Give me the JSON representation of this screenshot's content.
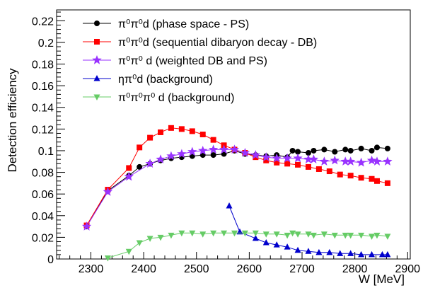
{
  "chart_data": {
    "type": "line",
    "xlabel": "W  [MeV]",
    "ylabel": "Detection efficiency",
    "xlim": [
      2235,
      2905
    ],
    "ylim": [
      0,
      0.23
    ],
    "x_ticks": [
      "2300",
      "2400",
      "2500",
      "2600",
      "2700",
      "2800",
      "2900"
    ],
    "y_ticks": [
      "0",
      "0.02",
      "0.04",
      "0.06",
      "0.08",
      "0.1",
      "0.12",
      "0.14",
      "0.16",
      "0.18",
      "0.2",
      "0.22"
    ],
    "grid": false,
    "legend_position": "top-left",
    "series": [
      {
        "name": "π⁰π⁰d (phase space - PS)",
        "color": "#000000",
        "marker": "circle",
        "x": [
          2292,
          2332,
          2372,
          2392,
          2412,
          2432,
          2452,
          2472,
          2492,
          2512,
          2532,
          2552,
          2572,
          2592,
          2612,
          2632,
          2652,
          2672,
          2682,
          2692,
          2712,
          2722,
          2742,
          2762,
          2782,
          2792,
          2812,
          2832,
          2842,
          2862
        ],
        "y": [
          0.03,
          0.063,
          0.077,
          0.085,
          0.088,
          0.091,
          0.093,
          0.094,
          0.095,
          0.096,
          0.096,
          0.097,
          0.1,
          0.097,
          0.096,
          0.095,
          0.096,
          0.094,
          0.1,
          0.099,
          0.098,
          0.1,
          0.101,
          0.099,
          0.101,
          0.1,
          0.102,
          0.1,
          0.103,
          0.102
        ]
      },
      {
        "name": "π⁰π⁰d (sequential dibaryon decay - DB)",
        "color": "#ff0000",
        "marker": "square",
        "x": [
          2292,
          2332,
          2372,
          2392,
          2412,
          2432,
          2452,
          2472,
          2492,
          2512,
          2532,
          2552,
          2572,
          2592,
          2612,
          2632,
          2652,
          2672,
          2692,
          2712,
          2732,
          2752,
          2772,
          2792,
          2812,
          2832,
          2842,
          2862
        ],
        "y": [
          0.031,
          0.064,
          0.084,
          0.103,
          0.112,
          0.117,
          0.121,
          0.12,
          0.118,
          0.115,
          0.11,
          0.105,
          0.101,
          0.098,
          0.094,
          0.091,
          0.089,
          0.088,
          0.087,
          0.085,
          0.083,
          0.081,
          0.078,
          0.077,
          0.075,
          0.074,
          0.072,
          0.07
        ]
      },
      {
        "name": "π⁰π⁰ d (weighted DB and PS)",
        "color": "#9933ff",
        "marker": "star",
        "x": [
          2292,
          2332,
          2372,
          2412,
          2432,
          2452,
          2472,
          2492,
          2512,
          2532,
          2552,
          2572,
          2592,
          2612,
          2632,
          2652,
          2672,
          2692,
          2712,
          2722,
          2742,
          2762,
          2782,
          2792,
          2812,
          2832,
          2842,
          2862
        ],
        "y": [
          0.03,
          0.062,
          0.076,
          0.088,
          0.092,
          0.095,
          0.097,
          0.099,
          0.1,
          0.101,
          0.101,
          0.101,
          0.098,
          0.096,
          0.094,
          0.093,
          0.093,
          0.093,
          0.092,
          0.092,
          0.09,
          0.091,
          0.09,
          0.09,
          0.089,
          0.091,
          0.09,
          0.09
        ]
      },
      {
        "name": "ηπ⁰d (background)",
        "color": "#0000cc",
        "marker": "triangle-up",
        "x": [
          2562,
          2582,
          2612,
          2632,
          2652,
          2672,
          2692,
          2712,
          2732,
          2752,
          2772,
          2792,
          2812,
          2832,
          2852,
          2862
        ],
        "y": [
          0.049,
          0.025,
          0.019,
          0.015,
          0.013,
          0.011,
          0.008,
          0.007,
          0.006,
          0.006,
          0.005,
          0.005,
          0.004,
          0.004,
          0.004,
          0.004
        ]
      },
      {
        "name": "π⁰π⁰π⁰ d (background)",
        "color": "#66cc66",
        "marker": "triangle-down",
        "x": [
          2332,
          2372,
          2392,
          2412,
          2432,
          2452,
          2472,
          2492,
          2512,
          2532,
          2552,
          2572,
          2592,
          2612,
          2632,
          2652,
          2672,
          2682,
          2692,
          2712,
          2722,
          2742,
          2762,
          2782,
          2792,
          2812,
          2832,
          2842,
          2862
        ],
        "y": [
          0.001,
          0.007,
          0.015,
          0.019,
          0.02,
          0.022,
          0.024,
          0.024,
          0.023,
          0.024,
          0.024,
          0.024,
          0.024,
          0.024,
          0.023,
          0.023,
          0.022,
          0.024,
          0.023,
          0.023,
          0.022,
          0.023,
          0.022,
          0.022,
          0.022,
          0.022,
          0.021,
          0.022,
          0.021
        ]
      }
    ]
  },
  "legend": {
    "items": [
      {
        "label": "π⁰π⁰d (phase space - PS)",
        "color": "#000000",
        "marker": "circle"
      },
      {
        "label": "π⁰π⁰d (sequential dibaryon decay - DB)",
        "color": "#ff0000",
        "marker": "square"
      },
      {
        "label": "π⁰π⁰ d (weighted DB and PS)",
        "color": "#9933ff",
        "marker": "star"
      },
      {
        "label": "ηπ⁰d (background)",
        "color": "#0000cc",
        "marker": "triangle-up"
      },
      {
        "label": "π⁰π⁰π⁰ d (background)",
        "color": "#66cc66",
        "marker": "triangle-down"
      }
    ]
  }
}
